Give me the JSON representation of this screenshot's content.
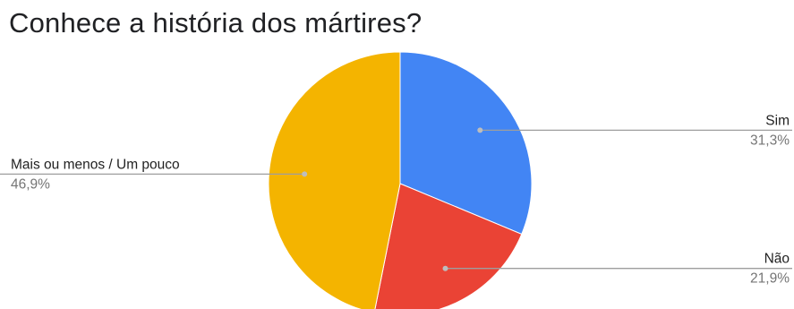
{
  "chart_data": {
    "type": "pie",
    "title": "Conhece a história dos mártires?",
    "slices": [
      {
        "label": "Sim",
        "value": 31.3,
        "value_label": "31,3%",
        "color": "#4285F4"
      },
      {
        "label": "Não",
        "value": 21.9,
        "value_label": "21,9%",
        "color": "#EA4335"
      },
      {
        "label": "Mais ou menos / Um pouco",
        "value": 46.9,
        "value_label": "46,9%",
        "color": "#F4B400"
      }
    ],
    "legend": "none",
    "data_labels": "outside-with-leader-lines"
  }
}
